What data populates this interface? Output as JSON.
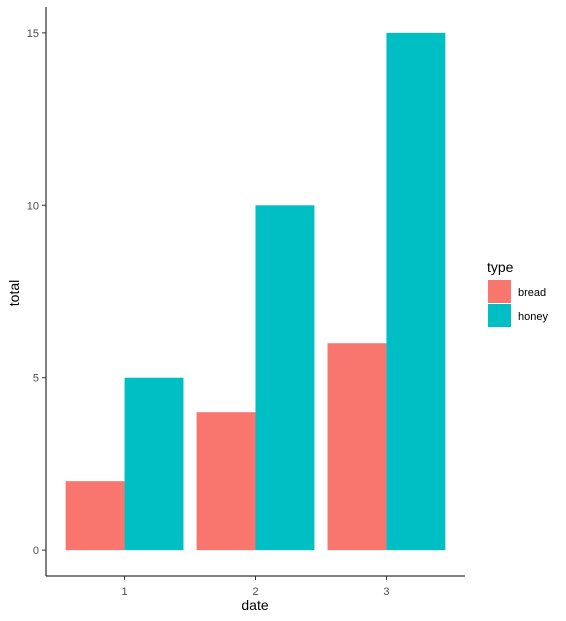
{
  "chart_data": {
    "type": "bar",
    "xlabel": "date",
    "ylabel": "total",
    "categories": [
      "1",
      "2",
      "3"
    ],
    "series": [
      {
        "name": "bread",
        "values": [
          2,
          4,
          6
        ],
        "color": "#F8766D"
      },
      {
        "name": "honey",
        "values": [
          5,
          10,
          15
        ],
        "color": "#00BFC4"
      }
    ],
    "yticks": [
      0,
      5,
      10,
      15
    ],
    "ylim": [
      -0.75,
      15.75
    ],
    "grid": false,
    "legend": {
      "title": "type",
      "position": "right"
    }
  }
}
